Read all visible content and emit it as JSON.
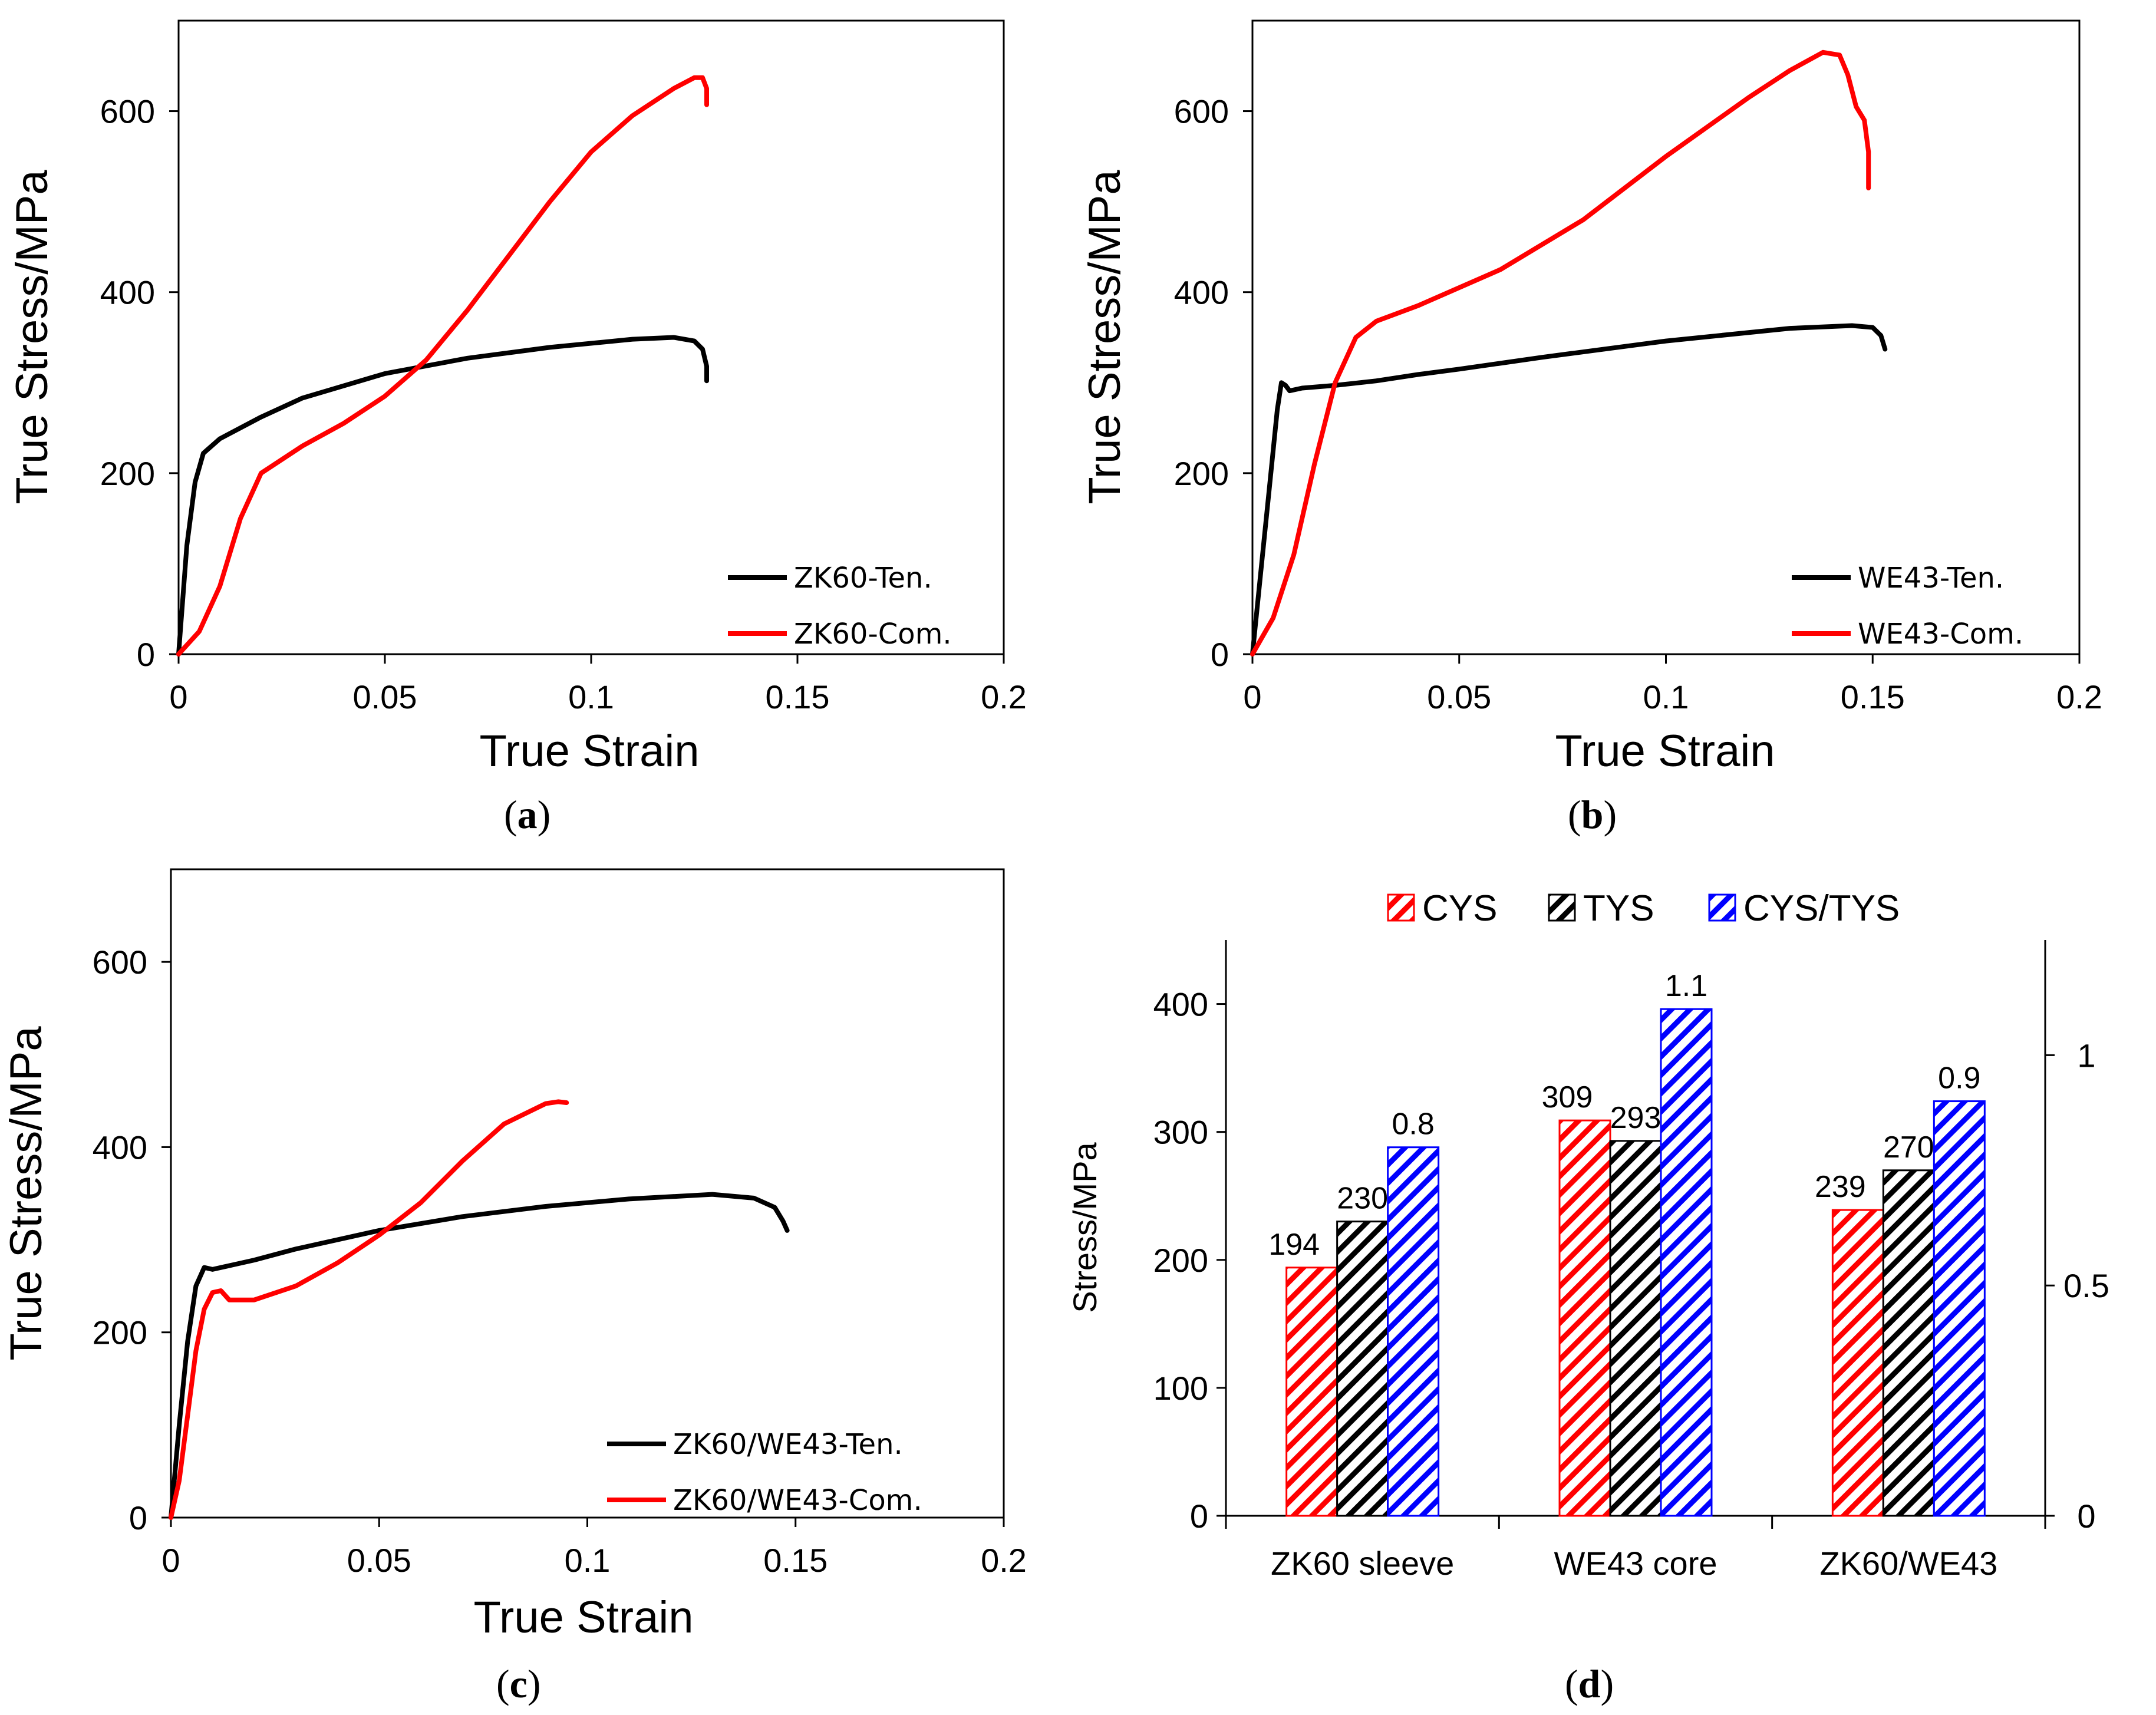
{
  "chart_data": [
    {
      "panel": "a",
      "type": "line",
      "caption_open": "(",
      "caption_letter": "a",
      "caption_close": ")",
      "xlabel": "True Strain",
      "ylabel": "True Stress/MPa",
      "xlim": [
        0,
        0.2
      ],
      "ylim": [
        0,
        700
      ],
      "xticks": [
        "0",
        "0.05",
        "0.1",
        "0.15",
        "0.2"
      ],
      "yticks": [
        "0",
        "200",
        "400",
        "600"
      ],
      "legend_position": "bottom-right",
      "series": [
        {
          "name": "ZK60-Ten.",
          "color": "#000000",
          "x": [
            0,
            0.002,
            0.004,
            0.006,
            0.01,
            0.02,
            0.03,
            0.05,
            0.07,
            0.09,
            0.11,
            0.12,
            0.125,
            0.127,
            0.128,
            0.128
          ],
          "y": [
            0,
            120,
            190,
            222,
            238,
            262,
            283,
            310,
            327,
            339,
            348,
            350,
            346,
            337,
            318,
            302
          ]
        },
        {
          "name": "ZK60-Com.",
          "color": "#ff0000",
          "x": [
            0,
            0.005,
            0.01,
            0.015,
            0.02,
            0.03,
            0.04,
            0.05,
            0.06,
            0.07,
            0.08,
            0.09,
            0.1,
            0.11,
            0.12,
            0.125,
            0.127,
            0.128,
            0.128
          ],
          "y": [
            0,
            25,
            75,
            150,
            200,
            230,
            255,
            285,
            325,
            380,
            440,
            500,
            555,
            595,
            625,
            637,
            637,
            625,
            607
          ]
        }
      ]
    },
    {
      "panel": "b",
      "type": "line",
      "caption_open": "(",
      "caption_letter": "b",
      "caption_close": ")",
      "xlabel": "True Strain",
      "ylabel": "True Stress/MPa",
      "xlim": [
        0,
        0.2
      ],
      "ylim": [
        0,
        700
      ],
      "xticks": [
        "0",
        "0.05",
        "0.1",
        "0.15",
        "0.2"
      ],
      "yticks": [
        "0",
        "200",
        "400",
        "600"
      ],
      "legend_position": "bottom-right",
      "series": [
        {
          "name": "WE43-Ten.",
          "color": "#000000",
          "x": [
            0,
            0.002,
            0.004,
            0.006,
            0.007,
            0.008,
            0.009,
            0.012,
            0.02,
            0.03,
            0.04,
            0.05,
            0.07,
            0.1,
            0.13,
            0.145,
            0.15,
            0.152,
            0.153
          ],
          "y": [
            0,
            90,
            180,
            270,
            300,
            297,
            291,
            294,
            297,
            302,
            309,
            315,
            328,
            346,
            360,
            363,
            361,
            352,
            337
          ]
        },
        {
          "name": "WE43-Com.",
          "color": "#ff0000",
          "x": [
            0,
            0.005,
            0.01,
            0.015,
            0.02,
            0.025,
            0.03,
            0.04,
            0.06,
            0.08,
            0.1,
            0.12,
            0.13,
            0.138,
            0.142,
            0.144,
            0.146,
            0.148,
            0.149,
            0.149
          ],
          "y": [
            0,
            40,
            110,
            210,
            300,
            350,
            368,
            385,
            425,
            480,
            550,
            615,
            645,
            665,
            662,
            640,
            605,
            590,
            555,
            515
          ]
        }
      ]
    },
    {
      "panel": "c",
      "type": "line",
      "caption_open": "(",
      "caption_letter": "c",
      "caption_close": ")",
      "xlabel": "True Strain",
      "ylabel": "True Stress/MPa",
      "xlim": [
        0,
        0.2
      ],
      "ylim": [
        0,
        700
      ],
      "xticks": [
        "0",
        "0.05",
        "0.1",
        "0.15",
        "0.2"
      ],
      "yticks": [
        "0",
        "200",
        "400",
        "600"
      ],
      "legend_position": "bottom-right",
      "series": [
        {
          "name": "ZK60/WE43-Ten.",
          "color": "#000000",
          "x": [
            0,
            0.002,
            0.004,
            0.006,
            0.008,
            0.01,
            0.015,
            0.02,
            0.03,
            0.05,
            0.07,
            0.09,
            0.11,
            0.13,
            0.14,
            0.145,
            0.147,
            0.148
          ],
          "y": [
            0,
            100,
            190,
            250,
            270,
            268,
            273,
            278,
            290,
            310,
            325,
            336,
            344,
            349,
            345,
            335,
            320,
            310
          ]
        },
        {
          "name": "ZK60/WE43-Com.",
          "color": "#ff0000",
          "x": [
            0,
            0.002,
            0.004,
            0.006,
            0.008,
            0.01,
            0.012,
            0.014,
            0.02,
            0.03,
            0.04,
            0.05,
            0.06,
            0.07,
            0.08,
            0.09,
            0.093,
            0.095
          ],
          "y": [
            0,
            40,
            110,
            180,
            225,
            243,
            245,
            235,
            235,
            250,
            275,
            305,
            340,
            385,
            425,
            447,
            449,
            448
          ]
        }
      ]
    },
    {
      "panel": "d",
      "type": "bar",
      "caption_open": "(",
      "caption_letter": "d",
      "caption_close": ")",
      "ylabel": "Stress/MPa",
      "ylim": [
        0,
        450
      ],
      "yticks": [
        "0",
        "100",
        "200",
        "300",
        "400"
      ],
      "y2lim": [
        0,
        1.25
      ],
      "y2ticks": [
        "0",
        "0.5",
        "1"
      ],
      "legend_position": "top",
      "categories": [
        "ZK60 sleeve",
        "WE43 core",
        "ZK60/WE43"
      ],
      "series": [
        {
          "name": "CYS",
          "color": "#ff0000",
          "axis": "left",
          "values": [
            194,
            309,
            239
          ],
          "labels": [
            "194",
            "309",
            "239"
          ]
        },
        {
          "name": "TYS",
          "color": "#000000",
          "axis": "left",
          "values": [
            230,
            293,
            270
          ],
          "labels": [
            "230",
            "293",
            "270"
          ]
        },
        {
          "name": "CYS/TYS",
          "color": "#0000ff",
          "axis": "right",
          "values": [
            0.8,
            1.1,
            0.9
          ],
          "labels": [
            "0.8",
            "1.1",
            "0.9"
          ]
        }
      ]
    }
  ]
}
